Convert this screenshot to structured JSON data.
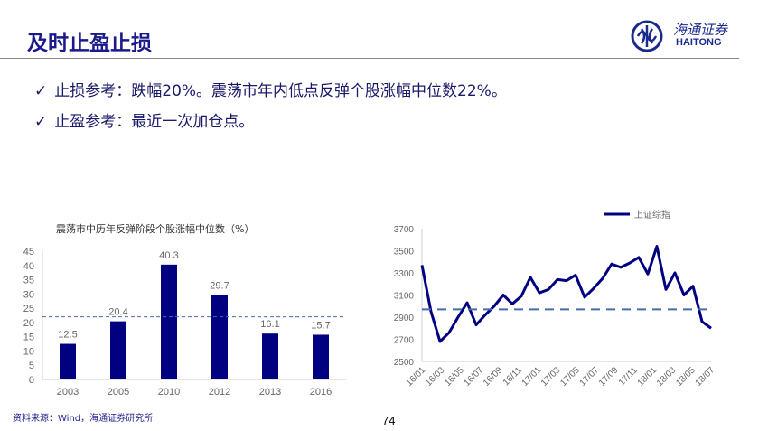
{
  "header": {
    "title": "及时止盈止损",
    "logo_cn": "海通证券",
    "logo_en": "HAITONG"
  },
  "bullets": [
    {
      "icon": "check-icon",
      "text": "止损参考：跌幅20%。震荡市年内低点反弹个股涨幅中位数22%。"
    },
    {
      "icon": "check-icon",
      "text": "止盈参考：最近一次加仓点。"
    }
  ],
  "footer": {
    "source": "资料来源：Wind，海通证券研究所",
    "page": "74"
  },
  "colors": {
    "primary": "#000080",
    "dashed": "#4a6ab0",
    "title": "#1a1a8c"
  },
  "chart_data": [
    {
      "type": "bar",
      "title": "震荡市中历年反弹阶段个股涨幅中位数（%）",
      "categories": [
        "2003",
        "2005",
        "2010",
        "2012",
        "2013",
        "2016"
      ],
      "values": [
        12.5,
        20.4,
        40.3,
        29.7,
        16.1,
        15.7
      ],
      "value_labels": [
        "12.5",
        "20.4",
        "40.3",
        "29.7",
        "16.1",
        "15.7"
      ],
      "ylim": [
        0,
        45
      ],
      "yticks": [
        "0",
        "5",
        "10",
        "15",
        "20",
        "25",
        "30",
        "35",
        "40",
        "45"
      ],
      "reference_line": 22
    },
    {
      "type": "line",
      "legend": "上证综指",
      "legend_position": "top-right",
      "xticks": [
        "16/01",
        "16/03",
        "16/05",
        "16/07",
        "16/09",
        "16/11",
        "17/01",
        "17/03",
        "17/05",
        "17/07",
        "17/09",
        "17/11",
        "18/01",
        "18/03",
        "18/05",
        "18/07"
      ],
      "yticks": [
        "2500",
        "2700",
        "2900",
        "3100",
        "3300",
        "3500",
        "3700"
      ],
      "ylim": [
        2500,
        3700
      ],
      "reference_line": 2970,
      "x": [
        "16/01",
        "16/01b",
        "16/02",
        "16/02b",
        "16/03",
        "16/04",
        "16/05",
        "16/06",
        "16/07",
        "16/08",
        "16/09",
        "16/10",
        "16/11",
        "16/12",
        "17/01",
        "17/02",
        "17/03",
        "17/04",
        "17/05",
        "17/06",
        "17/07",
        "17/08",
        "17/09",
        "17/10",
        "17/11",
        "17/12",
        "18/01",
        "18/02",
        "18/03",
        "18/04",
        "18/05",
        "18/06",
        "18/07"
      ],
      "values": [
        3370,
        2950,
        2680,
        2760,
        2900,
        3030,
        2830,
        2920,
        3000,
        3100,
        3020,
        3090,
        3260,
        3120,
        3150,
        3240,
        3230,
        3280,
        3080,
        3160,
        3250,
        3380,
        3350,
        3390,
        3440,
        3290,
        3540,
        3150,
        3300,
        3100,
        3180,
        2860,
        2800
      ]
    }
  ]
}
